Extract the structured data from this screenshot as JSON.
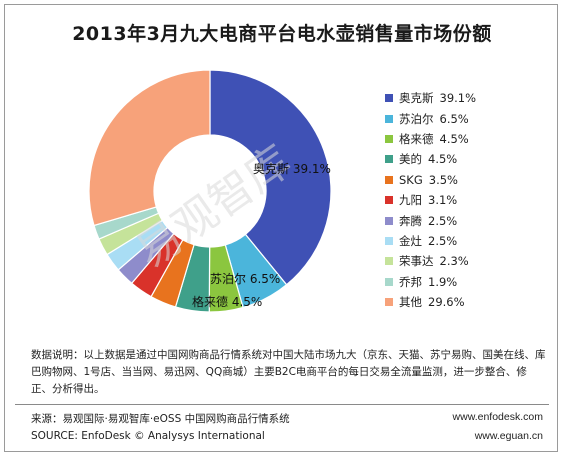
{
  "chart_data": {
    "type": "pie",
    "donut": true,
    "title": "2013年3月九大电商平台电水壶销售量市场份额",
    "slices": [
      {
        "label": "奥克斯",
        "value": 39.1,
        "display": "39.1%",
        "color": "#3F51B5"
      },
      {
        "label": "苏泊尔",
        "value": 6.5,
        "display": "6.5%",
        "color": "#4BB5DB"
      },
      {
        "label": "格来德",
        "value": 4.5,
        "display": "4.5%",
        "color": "#8BC63F"
      },
      {
        "label": "美的",
        "value": 4.5,
        "display": "4.5%",
        "color": "#3FA08A"
      },
      {
        "label": "SKG",
        "value": 3.5,
        "display": "3.5%",
        "color": "#E8731E"
      },
      {
        "label": "九阳",
        "value": 3.1,
        "display": "3.1%",
        "color": "#D9322A"
      },
      {
        "label": "奔腾",
        "value": 2.5,
        "display": "2.5%",
        "color": "#8E8CCB"
      },
      {
        "label": "金灶",
        "value": 2.5,
        "display": "2.5%",
        "color": "#A9DDF4"
      },
      {
        "label": "荣事达",
        "value": 2.3,
        "display": "2.3%",
        "color": "#C5E39A"
      },
      {
        "label": "乔邦",
        "value": 1.9,
        "display": "1.9%",
        "color": "#A7D8CB"
      },
      {
        "label": "其他",
        "value": 29.6,
        "display": "29.6%",
        "color": "#F7A27A"
      }
    ],
    "callouts": [
      {
        "label": "奥克斯",
        "value": "39.1%"
      },
      {
        "label": "苏泊尔",
        "value": "6.5%"
      },
      {
        "label": "格来德",
        "value": "4.5%"
      }
    ],
    "legend_position": "right"
  },
  "watermark": "易观智库",
  "note": "数据说明：以上数据是通过中国网购商品行情系统对中国大陆市场九大（京东、天猫、苏宁易购、国美在线、库巴购物网、1号店、当当网、易迅网、QQ商城）主要B2C电商平台的每日交易全流量监测，进一步整合、修正、分析得出。",
  "source_cn": "来源：易观国际·易观智库·eOSS 中国网购商品行情系统",
  "source_en": "SOURCE: EnfoDesk © Analysys International",
  "site1": "www.enfodesk.com",
  "site2": "www.eguan.cn"
}
